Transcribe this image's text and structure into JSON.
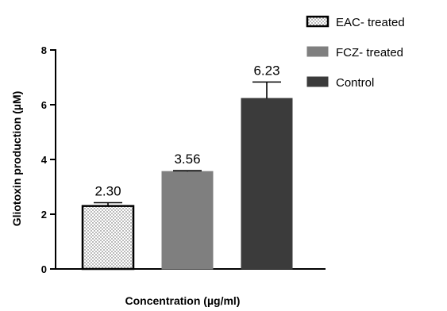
{
  "chart_data": {
    "type": "bar",
    "title": "",
    "xlabel": "Concentration (µg/ml)",
    "ylabel": "Gliotoxin production (µM)",
    "ylim": [
      0,
      8
    ],
    "yticks": [
      0,
      2,
      4,
      6,
      8
    ],
    "grid": false,
    "legend_position": "top-right",
    "series": [
      {
        "name": "EAC- treated",
        "value": 2.3,
        "error": 0.12,
        "label": "2.30",
        "fill": "#ffffff",
        "pattern": "dotted",
        "stroke": "#000000"
      },
      {
        "name": "FCZ- treated",
        "value": 3.56,
        "error": 0.03,
        "label": "3.56",
        "fill": "#7f7f7f",
        "pattern": "solid",
        "stroke": "#7f7f7f"
      },
      {
        "name": "Control",
        "value": 6.23,
        "error": 0.6,
        "label": "6.23",
        "fill": "#3b3b3b",
        "pattern": "solid",
        "stroke": "#3b3b3b"
      }
    ]
  }
}
